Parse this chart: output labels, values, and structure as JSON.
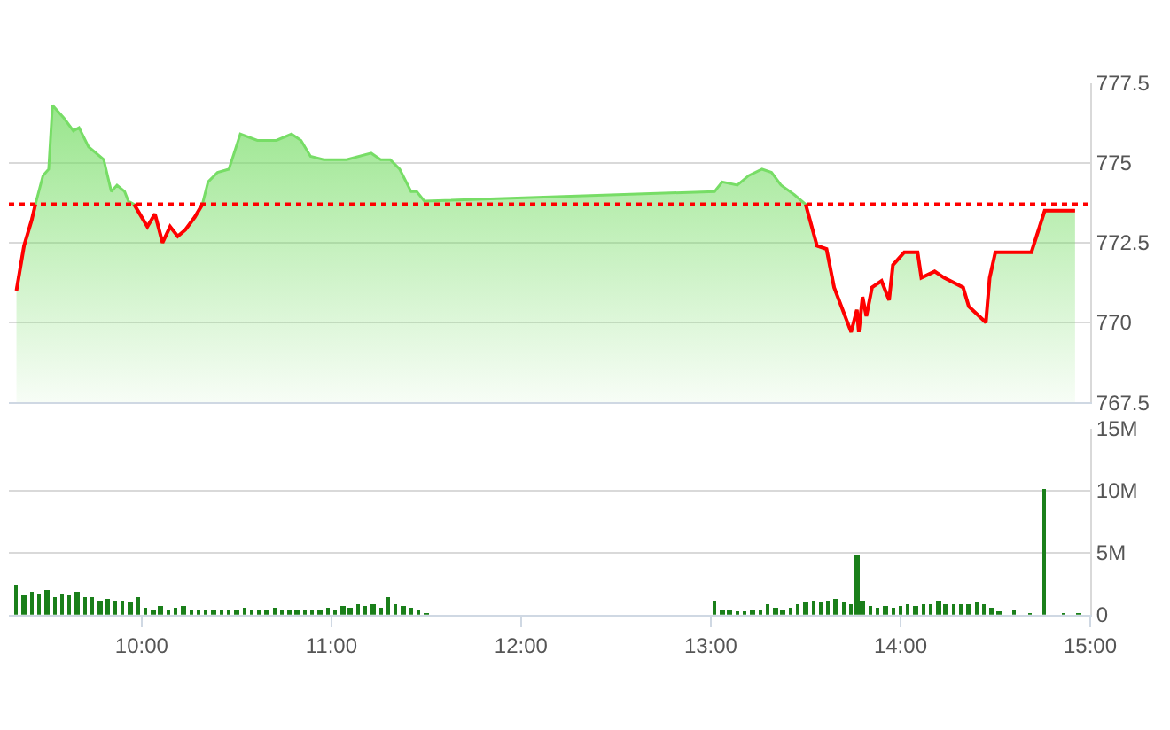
{
  "chart_data": [
    {
      "type": "area",
      "tick_labels": "y",
      "grid": "y",
      "xlim": [
        9.3,
        15
      ],
      "ylim": [
        767.5,
        777.5
      ],
      "yticks": [
        767.5,
        770,
        772.5,
        775,
        777.5
      ],
      "x": [
        9.34,
        9.38,
        9.42,
        9.44,
        9.48,
        9.51,
        9.53,
        9.56,
        9.59,
        9.64,
        9.67,
        9.72,
        9.8,
        9.84,
        9.87,
        9.91,
        9.93,
        9.96,
        10.03,
        10.07,
        10.11,
        10.15,
        10.19,
        10.23,
        10.28,
        10.32,
        10.35,
        10.4,
        10.46,
        10.52,
        10.61,
        10.71,
        10.79,
        10.84,
        10.89,
        10.96,
        11.08,
        11.21,
        11.26,
        11.31,
        11.36,
        11.42,
        11.45,
        11.49,
        13.02,
        13.06,
        13.14,
        13.2,
        13.27,
        13.32,
        13.37,
        13.44,
        13.5,
        13.56,
        13.61,
        13.65,
        13.74,
        13.77,
        13.78,
        13.8,
        13.82,
        13.85,
        13.9,
        13.94,
        13.96,
        14.02,
        14.09,
        14.11,
        14.18,
        14.23,
        14.33,
        14.36,
        14.45,
        14.47,
        14.5,
        14.69,
        14.76,
        14.92
      ],
      "series": [
        {
          "color": "#77dd66",
          "values": [
            771.0,
            772.4,
            773.2,
            773.7,
            774.6,
            774.8,
            776.8,
            776.6,
            776.4,
            776.0,
            776.1,
            775.5,
            775.1,
            774.1,
            774.3,
            774.1,
            773.8,
            773.7,
            773.0,
            773.4,
            772.5,
            773.0,
            772.7,
            772.9,
            773.3,
            773.7,
            774.4,
            774.7,
            774.8,
            775.9,
            775.7,
            775.7,
            775.9,
            775.7,
            775.2,
            775.1,
            775.1,
            775.3,
            775.1,
            775.1,
            774.8,
            774.1,
            774.1,
            773.8,
            774.1,
            774.4,
            774.3,
            774.6,
            774.8,
            774.7,
            774.3,
            774.0,
            773.7,
            772.4,
            772.3,
            771.1,
            769.7,
            770.4,
            769.7,
            770.8,
            770.2,
            771.1,
            771.3,
            770.7,
            771.8,
            772.2,
            772.2,
            771.4,
            771.6,
            771.4,
            771.1,
            770.5,
            770.0,
            771.4,
            772.2,
            772.2,
            773.5,
            773.5
          ]
        }
      ],
      "ref_lines": [
        {
          "axis": "y",
          "value": 773.7,
          "color": "#ff0000",
          "line_style": "dotted"
        }
      ]
    },
    {
      "type": "bar",
      "grid": "y",
      "xlim": [
        9.3,
        15
      ],
      "ylim": [
        0,
        15
      ],
      "xticks": [
        {
          "value": 10,
          "label": "10:00"
        },
        {
          "value": 11,
          "label": "11:00"
        },
        {
          "value": 12,
          "label": "12:00"
        },
        {
          "value": 13,
          "label": "13:00"
        },
        {
          "value": 14,
          "label": "14:00"
        },
        {
          "value": 15,
          "label": "15:00"
        }
      ],
      "yticks": [
        0,
        {
          "value": 5,
          "label": "5M"
        },
        {
          "value": 10,
          "label": "10M"
        },
        {
          "value": 15,
          "label": "15M"
        }
      ],
      "x": [
        9.34,
        9.38,
        9.42,
        9.46,
        9.5,
        9.54,
        9.58,
        9.62,
        9.66,
        9.7,
        9.74,
        9.78,
        9.82,
        9.86,
        9.9,
        9.94,
        9.98,
        10.02,
        10.06,
        10.1,
        10.14,
        10.18,
        10.22,
        10.26,
        10.3,
        10.34,
        10.38,
        10.42,
        10.46,
        10.5,
        10.54,
        10.58,
        10.62,
        10.66,
        10.7,
        10.74,
        10.78,
        10.82,
        10.86,
        10.9,
        10.94,
        10.98,
        11.02,
        11.06,
        11.1,
        11.14,
        11.18,
        11.22,
        11.26,
        11.3,
        11.34,
        11.38,
        11.42,
        11.46,
        11.5,
        13.02,
        13.06,
        13.1,
        13.14,
        13.18,
        13.22,
        13.26,
        13.3,
        13.34,
        13.38,
        13.42,
        13.46,
        13.5,
        13.54,
        13.58,
        13.62,
        13.66,
        13.7,
        13.74,
        13.77,
        13.8,
        13.84,
        13.88,
        13.92,
        13.96,
        14.0,
        14.04,
        14.08,
        14.12,
        14.16,
        14.2,
        14.24,
        14.28,
        14.32,
        14.36,
        14.4,
        14.44,
        14.48,
        14.52,
        14.6,
        14.68,
        14.76,
        14.86,
        14.94
      ],
      "series": [
        {
          "color": "#1a7f1a",
          "values": [
            2.4,
            1.6,
            1.9,
            1.7,
            2.0,
            1.5,
            1.7,
            1.6,
            1.8,
            1.4,
            1.5,
            1.2,
            1.3,
            1.1,
            1.2,
            1.0,
            1.4,
            0.6,
            0.5,
            0.7,
            0.5,
            0.6,
            0.7,
            0.4,
            0.5,
            0.4,
            0.5,
            0.4,
            0.5,
            0.4,
            0.6,
            0.4,
            0.5,
            0.4,
            0.6,
            0.4,
            0.5,
            0.4,
            0.5,
            0.4,
            0.5,
            0.6,
            0.5,
            0.7,
            0.6,
            0.8,
            0.7,
            0.8,
            0.6,
            1.4,
            0.8,
            0.7,
            0.6,
            0.4,
            0.2,
            1.2,
            0.4,
            0.5,
            0.3,
            0.3,
            0.4,
            0.5,
            0.9,
            0.6,
            0.5,
            0.6,
            0.8,
            1.0,
            1.2,
            1.0,
            1.1,
            1.3,
            1.0,
            0.9,
            4.8,
            1.1,
            0.7,
            0.6,
            0.7,
            0.6,
            0.7,
            0.8,
            0.7,
            0.9,
            0.8,
            1.1,
            0.9,
            0.8,
            0.9,
            0.8,
            1.0,
            0.8,
            0.6,
            0.3,
            0.5,
            0.2,
            10.1,
            0.2,
            0.2
          ]
        }
      ]
    }
  ]
}
